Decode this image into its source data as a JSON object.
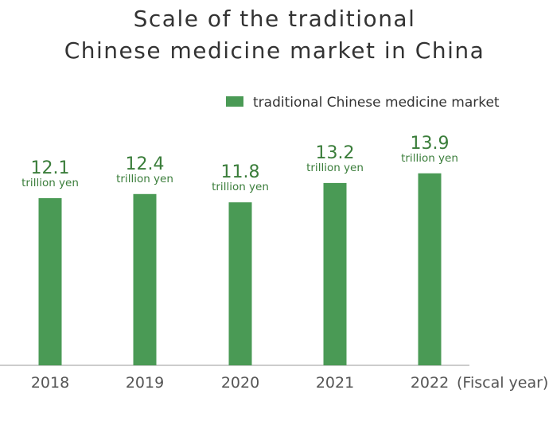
{
  "chart_data": {
    "type": "bar",
    "title_lines": [
      "Scale of the traditional",
      "Chinese medicine market in China"
    ],
    "categories": [
      "2018",
      "2019",
      "2020",
      "2021",
      "2022"
    ],
    "series": [
      {
        "name": "traditional Chinese medicine market",
        "values": [
          12.1,
          12.4,
          11.8,
          13.2,
          13.9
        ]
      }
    ],
    "value_unit": "trillion yen",
    "xlabel": "(Fiscal year)",
    "ylabel": "",
    "ylim": [
      0,
      14.5
    ],
    "grid": false,
    "legend_position": "top-right",
    "colors": {
      "bar": "#4a9a55",
      "label": "#3a7d3a",
      "axis": "#bbbbbb"
    }
  }
}
